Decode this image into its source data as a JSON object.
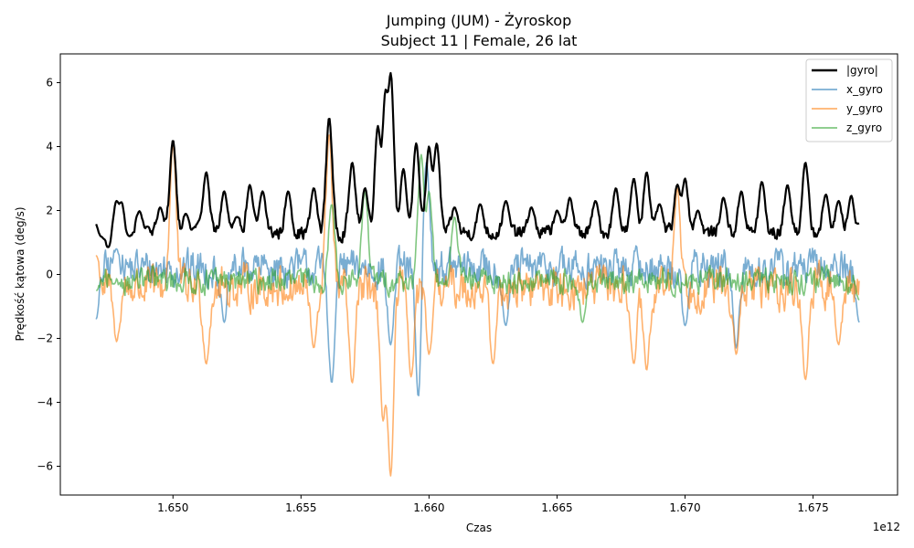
{
  "chart_data": {
    "type": "line",
    "title": "Jumping (JUM) - Żyroskop",
    "subtitle": "Subject 11 | Female, 26 lat",
    "xlabel": "Czas",
    "ylabel": "Prędkość kątowa (deg/s)",
    "x_offset_label": "1e12",
    "xlim": [
      1.6456,
      1.6783
    ],
    "ylim": [
      -6.9,
      6.9
    ],
    "x_start": 1.647,
    "x_end": 1.6768,
    "x_ticks": [
      1.65,
      1.655,
      1.66,
      1.665,
      1.67,
      1.675
    ],
    "x_tick_labels": [
      "1.650",
      "1.655",
      "1.660",
      "1.665",
      "1.670",
      "1.675"
    ],
    "y_ticks": [
      -6,
      -4,
      -2,
      0,
      2,
      4,
      6
    ],
    "y_tick_labels": [
      "−6",
      "−4",
      "−2",
      "0",
      "2",
      "4",
      "6"
    ],
    "grid": false,
    "legend_position": "top-right",
    "series": [
      {
        "name": "|gyro|",
        "color": "#000000",
        "baseline": 1.3,
        "noise": 0.35,
        "peaks": [
          [
            1.647,
            1.7
          ],
          [
            1.6472,
            1.2
          ],
          [
            1.6475,
            0.8
          ],
          [
            1.6478,
            2.3
          ],
          [
            1.648,
            2.3
          ],
          [
            1.6483,
            1.2
          ],
          [
            1.6487,
            2.0
          ],
          [
            1.649,
            1.5
          ],
          [
            1.6495,
            2.1
          ],
          [
            1.65,
            4.2
          ],
          [
            1.6505,
            1.9
          ],
          [
            1.651,
            1.6
          ],
          [
            1.6513,
            3.2
          ],
          [
            1.652,
            2.6
          ],
          [
            1.6525,
            1.8
          ],
          [
            1.653,
            2.8
          ],
          [
            1.6535,
            2.6
          ],
          [
            1.6545,
            2.6
          ],
          [
            1.6555,
            2.7
          ],
          [
            1.6561,
            4.9
          ],
          [
            1.657,
            3.5
          ],
          [
            1.6575,
            2.7
          ],
          [
            1.658,
            4.6
          ],
          [
            1.6583,
            5.6
          ],
          [
            1.6585,
            6.3
          ],
          [
            1.659,
            3.3
          ],
          [
            1.6595,
            4.1
          ],
          [
            1.66,
            4.0
          ],
          [
            1.6603,
            4.1
          ],
          [
            1.661,
            2.1
          ],
          [
            1.662,
            2.2
          ],
          [
            1.663,
            2.3
          ],
          [
            1.664,
            2.1
          ],
          [
            1.665,
            2.0
          ],
          [
            1.6655,
            2.4
          ],
          [
            1.6665,
            2.3
          ],
          [
            1.6673,
            2.7
          ],
          [
            1.668,
            3.0
          ],
          [
            1.6685,
            3.2
          ],
          [
            1.669,
            2.2
          ],
          [
            1.6697,
            2.8
          ],
          [
            1.67,
            3.0
          ],
          [
            1.6705,
            2.0
          ],
          [
            1.6715,
            2.4
          ],
          [
            1.6722,
            2.6
          ],
          [
            1.673,
            2.9
          ],
          [
            1.674,
            2.8
          ],
          [
            1.6747,
            3.5
          ],
          [
            1.6755,
            2.5
          ],
          [
            1.676,
            2.3
          ],
          [
            1.6765,
            2.5
          ],
          [
            1.6768,
            1.6
          ]
        ]
      },
      {
        "name": "x_gyro",
        "color": "#1f77b4",
        "baseline": 0.2,
        "noise": 0.9,
        "peaks": [
          [
            1.647,
            -1.4
          ],
          [
            1.6478,
            0.8
          ],
          [
            1.652,
            -1.5
          ],
          [
            1.6562,
            -3.4
          ],
          [
            1.6585,
            -2.2
          ],
          [
            1.6596,
            -4.1
          ],
          [
            1.6599,
            3.5
          ],
          [
            1.663,
            -1.6
          ],
          [
            1.67,
            -1.6
          ],
          [
            1.672,
            -2.3
          ],
          [
            1.6768,
            -1.5
          ]
        ]
      },
      {
        "name": "y_gyro",
        "color": "#ff7f0e",
        "baseline": -0.4,
        "noise": 1.0,
        "peaks": [
          [
            1.647,
            0.6
          ],
          [
            1.6478,
            -2.1
          ],
          [
            1.65,
            4.1
          ],
          [
            1.6513,
            -2.8
          ],
          [
            1.6555,
            -2.3
          ],
          [
            1.6561,
            4.4
          ],
          [
            1.657,
            -3.4
          ],
          [
            1.6582,
            -4.5
          ],
          [
            1.6585,
            -6.3
          ],
          [
            1.6593,
            -3.2
          ],
          [
            1.66,
            -2.5
          ],
          [
            1.6625,
            -2.8
          ],
          [
            1.668,
            -2.8
          ],
          [
            1.6685,
            -3.0
          ],
          [
            1.6697,
            2.7
          ],
          [
            1.672,
            -2.5
          ],
          [
            1.6747,
            -3.3
          ],
          [
            1.676,
            -2.2
          ]
        ]
      },
      {
        "name": "z_gyro",
        "color": "#2ca02c",
        "baseline": -0.2,
        "noise": 0.6,
        "peaks": [
          [
            1.647,
            -0.5
          ],
          [
            1.6477,
            -0.3
          ],
          [
            1.6562,
            2.2
          ],
          [
            1.6575,
            2.6
          ],
          [
            1.6597,
            3.8
          ],
          [
            1.66,
            2.6
          ],
          [
            1.661,
            1.8
          ],
          [
            1.666,
            -1.5
          ],
          [
            1.6768,
            -0.8
          ]
        ]
      }
    ]
  }
}
